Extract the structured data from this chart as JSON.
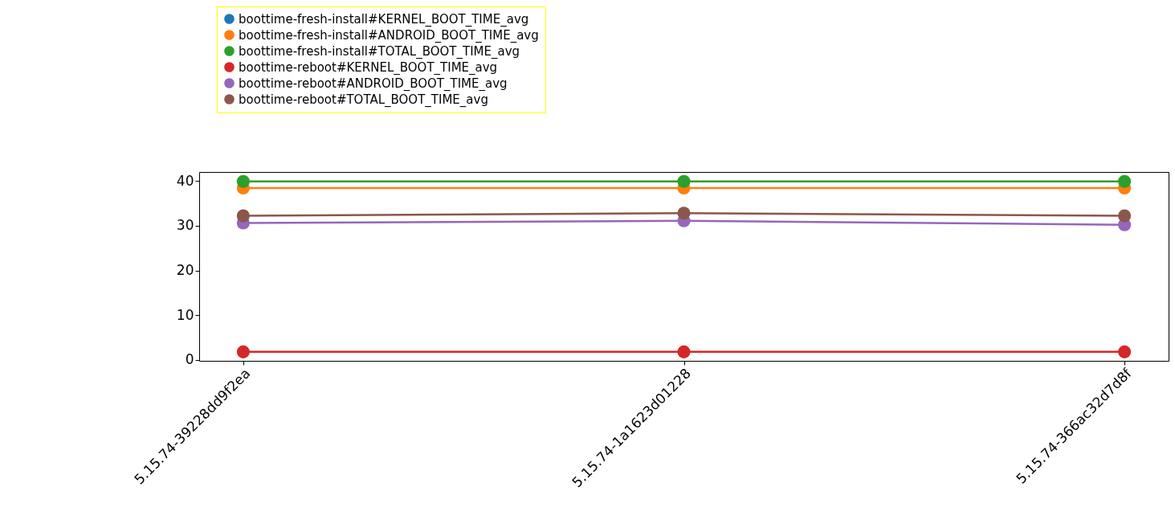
{
  "chart_data": {
    "type": "line",
    "categories": [
      "5.15.74-39228dd9f2ea",
      "5.15.74-1a1623d01228",
      "5.15.74-366ac32d7d8f"
    ],
    "series": [
      {
        "name": "boottime-fresh-install#KERNEL_BOOT_TIME_avg",
        "color": "#1f77b4",
        "values": [
          null,
          null,
          null
        ]
      },
      {
        "name": "boottime-fresh-install#ANDROID_BOOT_TIME_avg",
        "color": "#ff7f0e",
        "values": [
          38.4,
          38.4,
          38.4
        ]
      },
      {
        "name": "boottime-fresh-install#TOTAL_BOOT_TIME_avg",
        "color": "#2ca02c",
        "values": [
          39.9,
          39.9,
          39.9
        ]
      },
      {
        "name": "boottime-reboot#KERNEL_BOOT_TIME_avg",
        "color": "#d62728",
        "values": [
          1.8,
          1.8,
          1.8
        ]
      },
      {
        "name": "boottime-reboot#ANDROID_BOOT_TIME_avg",
        "color": "#9467bd",
        "values": [
          30.6,
          31.1,
          30.2
        ]
      },
      {
        "name": "boottime-reboot#TOTAL_BOOT_TIME_avg",
        "color": "#8c564b",
        "values": [
          32.2,
          32.8,
          32.2
        ]
      }
    ],
    "ylim": [
      -0.2,
      42
    ],
    "yticks": [
      0,
      10,
      20,
      30,
      40
    ],
    "legend": "top",
    "marker": "circle",
    "line_style": "solid",
    "grid": false
  }
}
